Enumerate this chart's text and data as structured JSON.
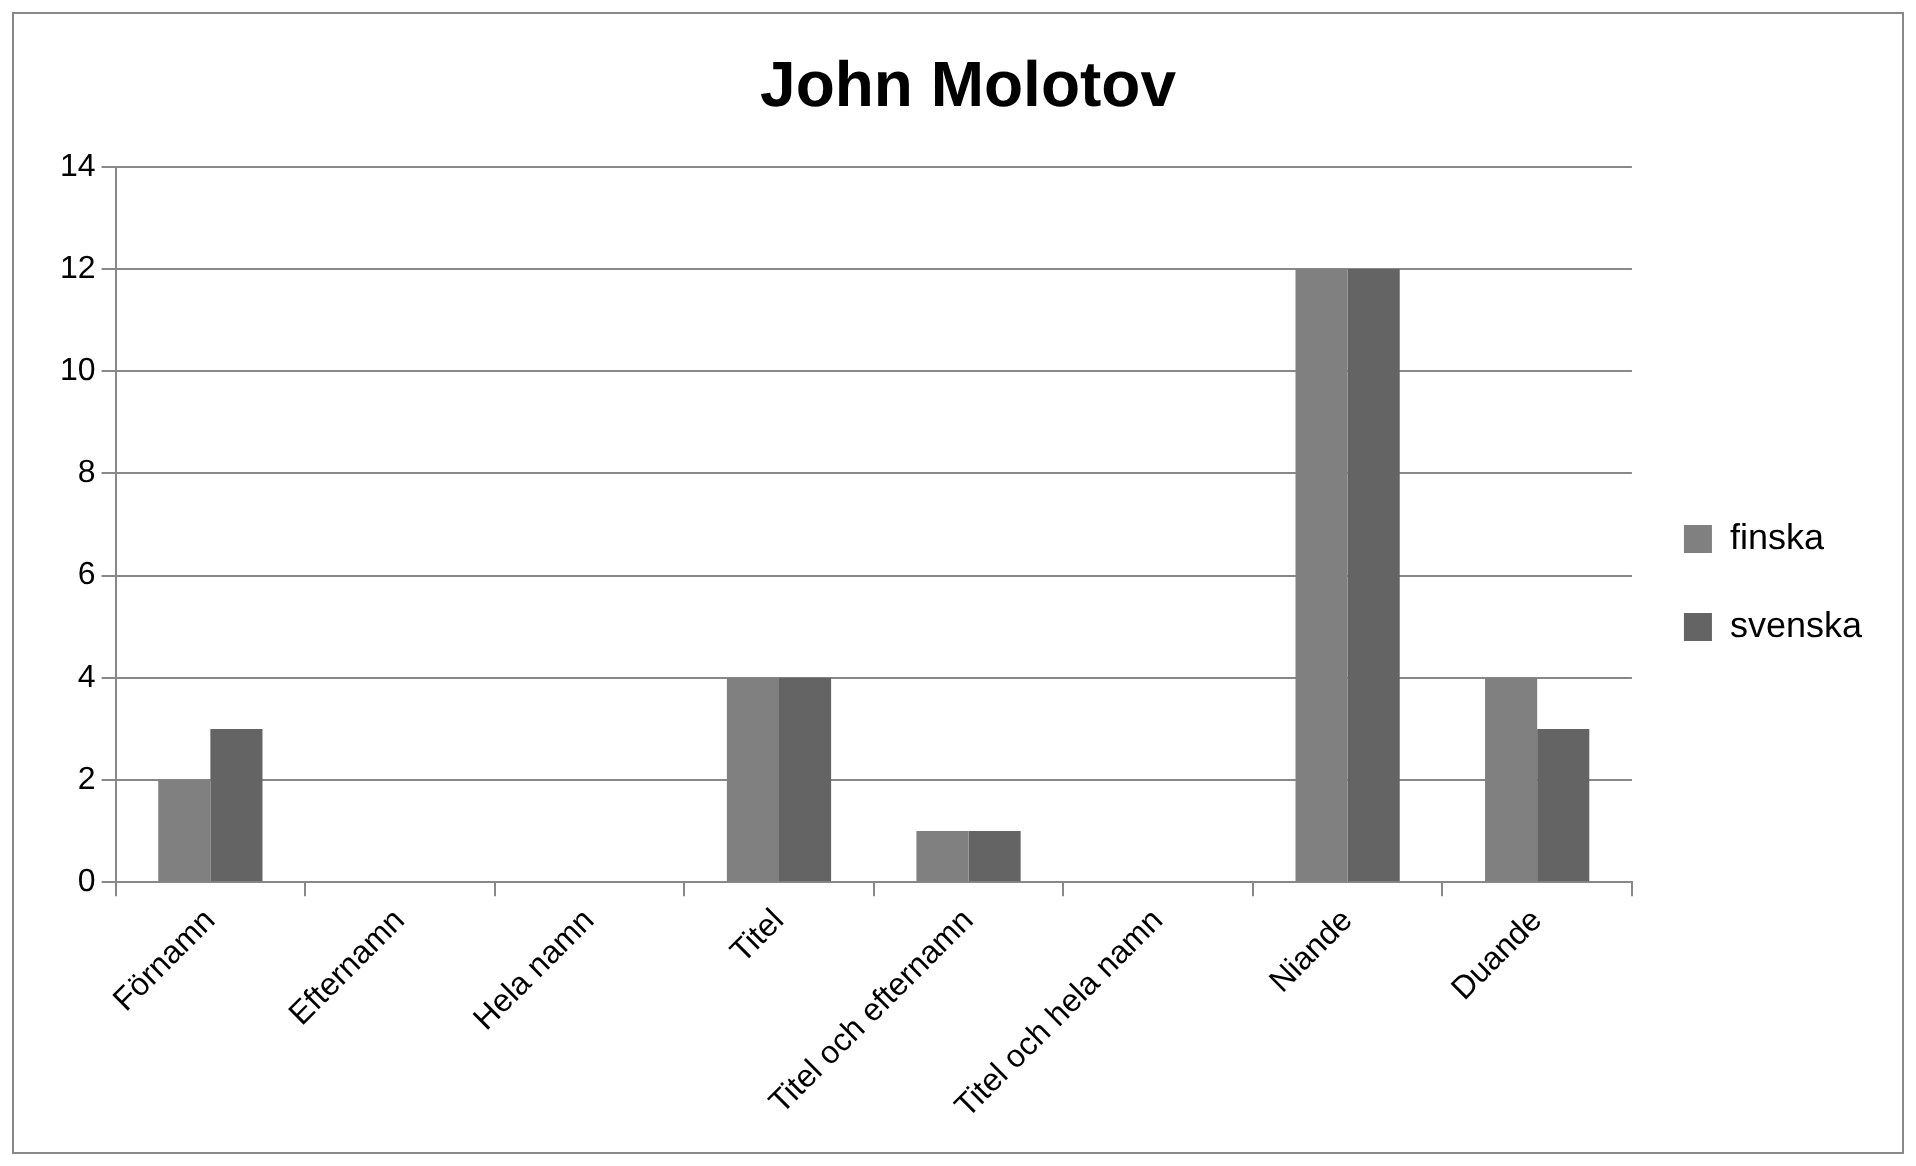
{
  "chart_data": {
    "type": "bar",
    "title": "John Molotov",
    "categories": [
      "Förnamn",
      "Efternamn",
      "Hela namn",
      "Titel",
      "Titel och efternamn",
      "Titel och hela namn",
      "Niande",
      "Duande"
    ],
    "series": [
      {
        "name": "finska",
        "color": "#808080",
        "values": [
          2,
          0,
          0,
          4,
          1,
          0,
          12,
          4
        ]
      },
      {
        "name": "svenska",
        "color": "#646464",
        "values": [
          3,
          0,
          0,
          4,
          1,
          0,
          12,
          3
        ]
      }
    ],
    "ylim": [
      0,
      14
    ],
    "yticks": [
      0,
      2,
      4,
      6,
      8,
      10,
      12,
      14
    ],
    "grid": "y",
    "legend": "right"
  }
}
